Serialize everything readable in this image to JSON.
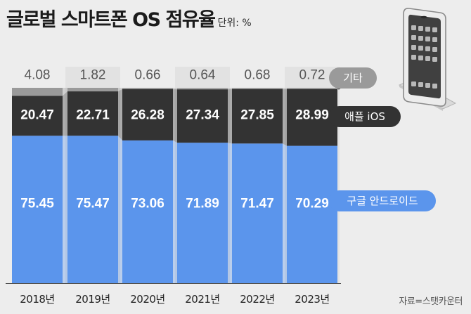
{
  "title": "글로벌 스마트폰 OS 점유율",
  "unit": "단위: %",
  "source": "자료=스탯카운터",
  "phone_icon": "smartphone-icon",
  "chart_data": {
    "type": "bar",
    "stacked": true,
    "title": "글로벌 스마트폰 OS 점유율",
    "ylabel": "%",
    "xlabel": "",
    "ylim": [
      0,
      100
    ],
    "categories": [
      "2018년",
      "2019년",
      "2020년",
      "2021년",
      "2022년",
      "2023년"
    ],
    "series": [
      {
        "name": "구글 안드로이드",
        "color": "#5b95ec",
        "label_color": "#ffffff",
        "values": [
          75.45,
          75.47,
          73.06,
          71.89,
          71.47,
          70.29
        ]
      },
      {
        "name": "애플 iOS",
        "color": "#333333",
        "label_color": "#ffffff",
        "values": [
          20.47,
          22.71,
          26.28,
          27.34,
          27.85,
          28.99
        ]
      },
      {
        "name": "기타",
        "color": "#9a9a9a",
        "label_color": "#555555",
        "values": [
          4.08,
          1.82,
          0.66,
          0.64,
          0.68,
          0.72
        ]
      }
    ],
    "value_labels": [
      [
        "75.45",
        "75.47",
        "73.06",
        "71.89",
        "71.47",
        "70.29"
      ],
      [
        "20.47",
        "22.71",
        "26.28",
        "27.34",
        "27.85",
        "28.99"
      ],
      [
        "4.08",
        "1.82",
        "0.66",
        "0.64",
        "0.68",
        "0.72"
      ]
    ]
  }
}
